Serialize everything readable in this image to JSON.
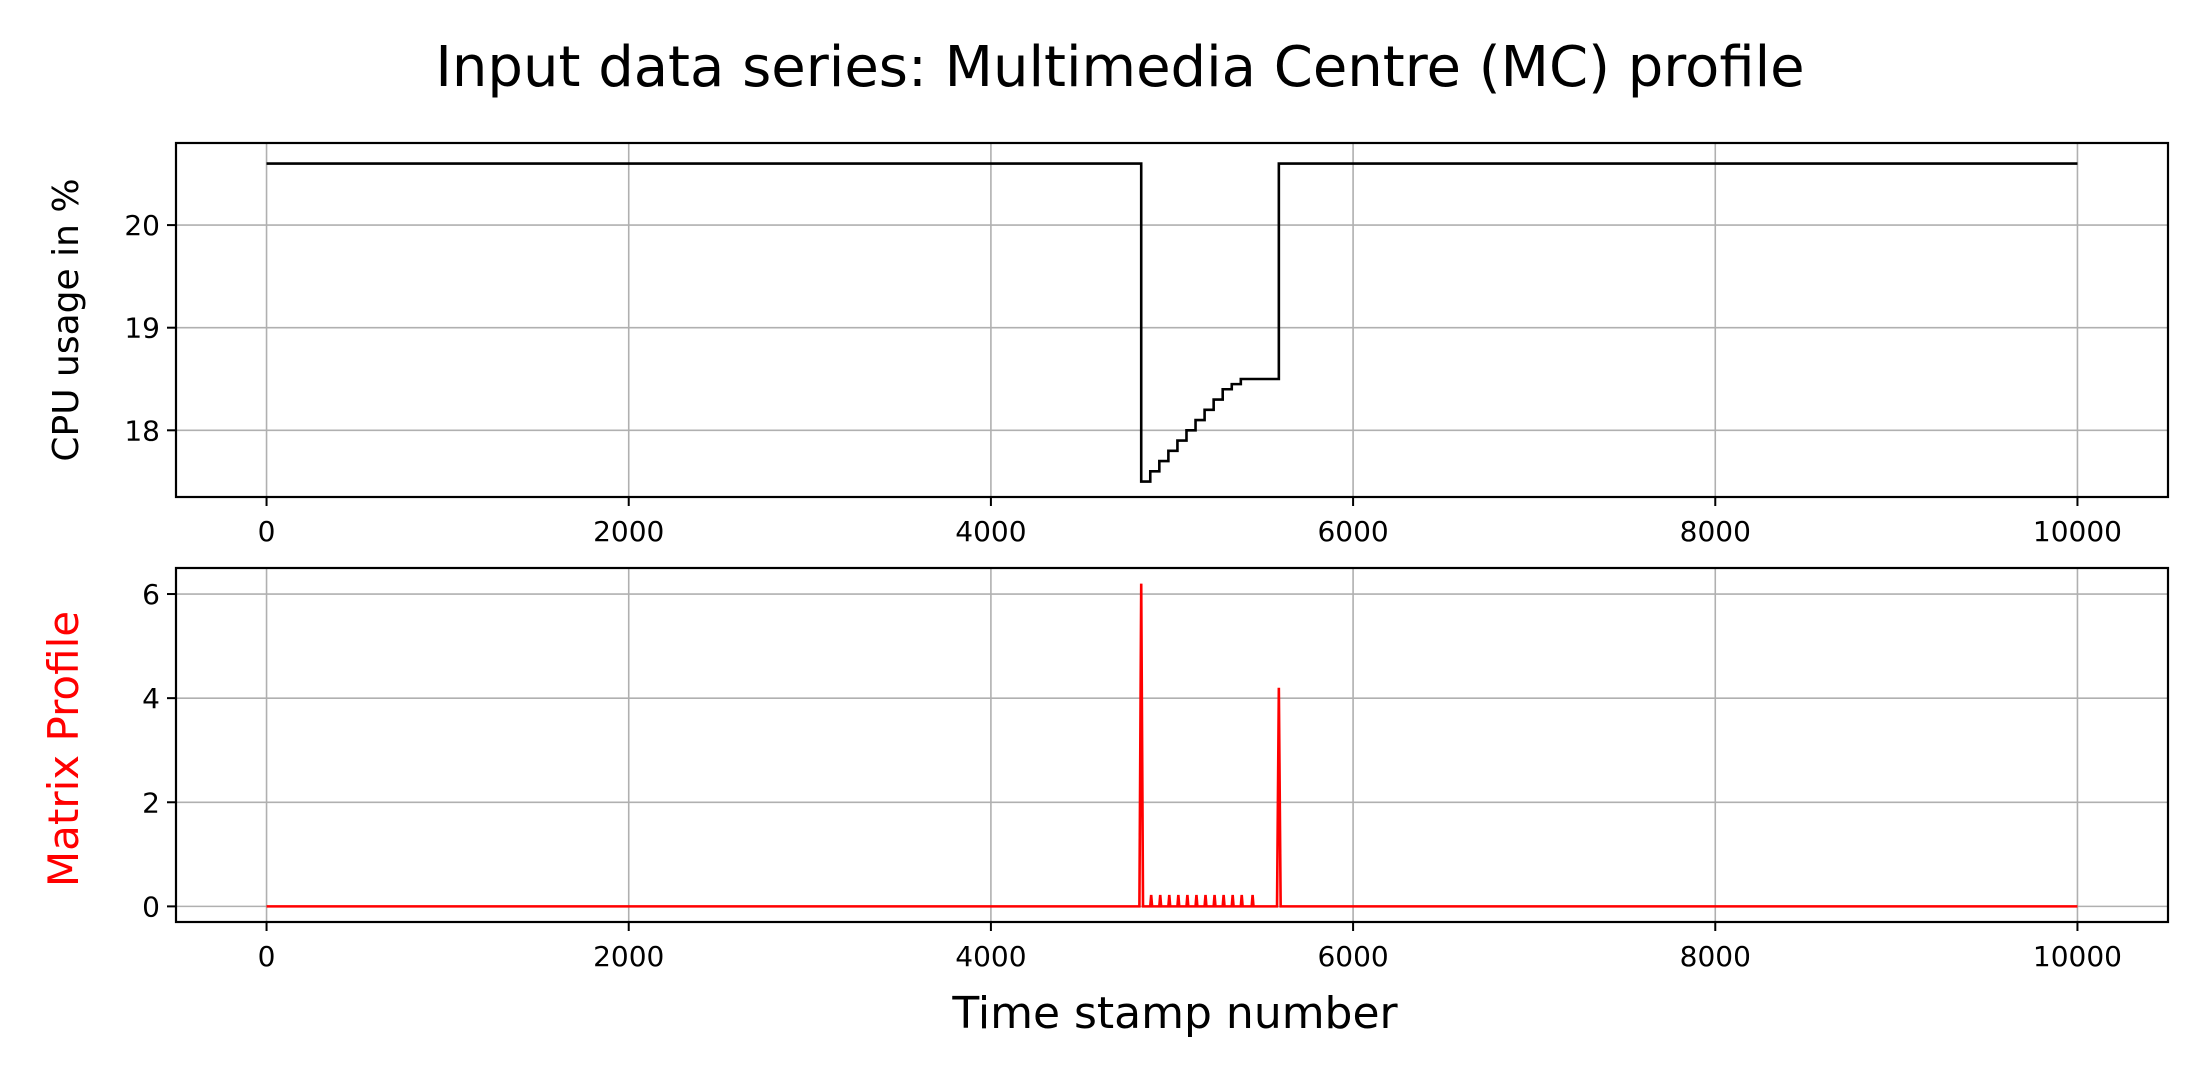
{
  "figure": {
    "title": "Input data series: Multimedia Centre (MC) profile",
    "xlabel": "Time stamp number"
  },
  "chart_data": [
    {
      "type": "line",
      "ylabel": "CPU usage in %",
      "ylabel_color": "#000000",
      "line_color": "#000000",
      "xlim": [
        -500,
        10500
      ],
      "ylim": [
        17.35,
        20.8
      ],
      "grid": true,
      "x_ticks": [
        0,
        2000,
        4000,
        6000,
        8000,
        10000
      ],
      "y_ticks": [
        18,
        19,
        20
      ],
      "series": [
        {
          "step": true,
          "x": [
            0,
            4830,
            4830,
            4880,
            4930,
            4980,
            5030,
            5080,
            5130,
            5180,
            5230,
            5280,
            5330,
            5380,
            5430,
            5590,
            5590,
            10000
          ],
          "y": [
            20.6,
            20.6,
            17.5,
            17.6,
            17.7,
            17.8,
            17.9,
            18.0,
            18.1,
            18.2,
            18.3,
            18.4,
            18.45,
            18.5,
            18.5,
            18.5,
            20.6,
            20.6
          ]
        }
      ]
    },
    {
      "type": "line",
      "ylabel": "Matrix Profile",
      "ylabel_color": "#ff0000",
      "line_color": "#ff0000",
      "xlim": [
        -500,
        10500
      ],
      "ylim": [
        -0.3,
        6.5
      ],
      "grid": true,
      "x_ticks": [
        0,
        2000,
        4000,
        6000,
        8000,
        10000
      ],
      "y_ticks": [
        0,
        2,
        4,
        6
      ],
      "series": [
        {
          "step": false,
          "x": [
            0,
            4820,
            4830,
            4840,
            4850,
            4880,
            4885,
            4890,
            4930,
            4935,
            4940,
            4980,
            4985,
            4990,
            5030,
            5035,
            5040,
            5080,
            5085,
            5090,
            5130,
            5135,
            5140,
            5180,
            5185,
            5190,
            5230,
            5235,
            5240,
            5280,
            5285,
            5290,
            5330,
            5335,
            5340,
            5380,
            5385,
            5390,
            5440,
            5445,
            5450,
            5580,
            5590,
            5600,
            10000
          ],
          "y": [
            0,
            0,
            6.2,
            0,
            0,
            0,
            0.22,
            0,
            0,
            0.22,
            0,
            0,
            0.22,
            0,
            0,
            0.22,
            0,
            0,
            0.22,
            0,
            0,
            0.22,
            0,
            0,
            0.22,
            0,
            0,
            0.22,
            0,
            0,
            0.22,
            0,
            0,
            0.22,
            0,
            0,
            0.22,
            0,
            0,
            0.22,
            0,
            0,
            4.2,
            0,
            0
          ]
        }
      ]
    }
  ]
}
